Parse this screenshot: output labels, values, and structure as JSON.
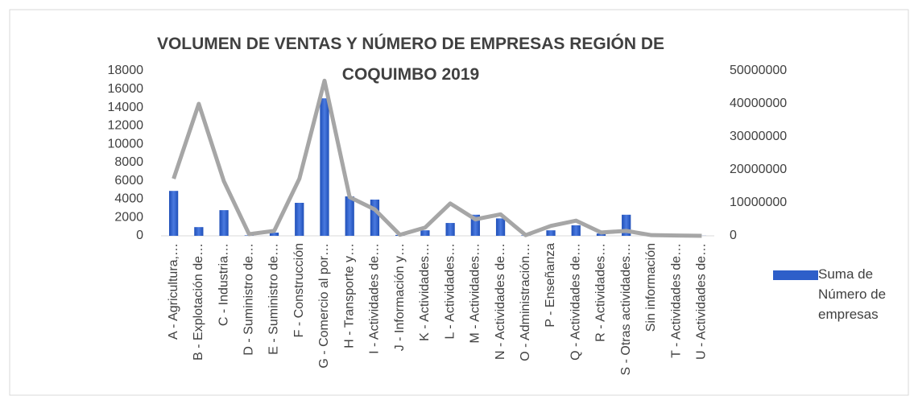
{
  "chart_data": {
    "type": "bar_line",
    "title": "VOLUMEN DE VENTAS Y NÚMERO DE EMPRESAS REGIÓN DE COQUIMBO 2019",
    "categories": [
      "A - Agricultura,…",
      "B - Explotación de…",
      "C - Industria…",
      "D - Suministro de…",
      "E - Suministro de…",
      "F - Construcción",
      "G - Comercio al por…",
      "H - Transporte y…",
      "I - Actividades de…",
      "J - Información y…",
      "K - Actividades…",
      "L - Actividades…",
      "M - Actividades…",
      "N - Actividades de…",
      "O - Administración…",
      "P - Enseñanza",
      "Q - Actividades de…",
      "R - Actividades…",
      "S - Otras actividades…",
      "Sin información",
      "T - Actividades de…",
      "U - Actividades de…"
    ],
    "series": [
      {
        "name": "Suma de Número de empresas",
        "type": "bar",
        "color": "#2e5fc9",
        "values": [
          4900,
          950,
          2800,
          50,
          350,
          3600,
          15000,
          4300,
          3950,
          100,
          600,
          1400,
          2300,
          1900,
          50,
          600,
          1150,
          250,
          2300,
          10,
          20,
          10
        ]
      },
      {
        "type": "line",
        "axis": "y2",
        "color": "#a6a6a6",
        "values": [
          17300000,
          40000000,
          16500000,
          500000,
          1500000,
          17300000,
          47000000,
          11700000,
          8000000,
          300000,
          2500000,
          9800000,
          5000000,
          6500000,
          200000,
          3000000,
          4600000,
          1000000,
          1500000,
          200000,
          100000,
          0
        ]
      }
    ],
    "ylim": [
      0,
      18000
    ],
    "yticks": [
      0,
      2000,
      4000,
      6000,
      8000,
      10000,
      12000,
      14000,
      16000,
      18000
    ],
    "y2lim": [
      0,
      50000000
    ],
    "y2ticks": [
      0,
      10000000,
      20000000,
      30000000,
      40000000,
      50000000
    ],
    "legend": "right"
  }
}
